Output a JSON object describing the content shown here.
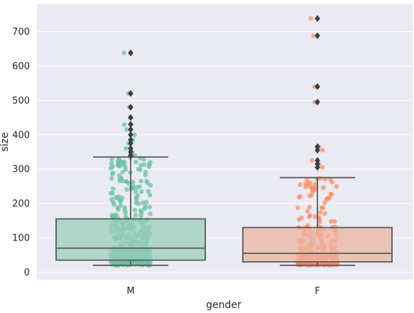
{
  "chart_data": {
    "type": "box",
    "title": "",
    "xlabel": "gender",
    "ylabel": "size",
    "categories": [
      "M",
      "F"
    ],
    "ylim": [
      -25,
      775
    ],
    "yticks": [
      0,
      100,
      200,
      300,
      400,
      500,
      600,
      700
    ],
    "grid": true,
    "background": "#eaeaf2",
    "boxes": [
      {
        "category": "M",
        "q1": 35,
        "median": 70,
        "q3": 155,
        "whisker_low": 20,
        "whisker_high": 335,
        "fliers": [
          340,
          350,
          360,
          375,
          385,
          400,
          415,
          430,
          450,
          480,
          520,
          638
        ],
        "color": "#66c2a5",
        "box_fill": "#9ccdbb",
        "jitter_count": 500
      },
      {
        "category": "F",
        "q1": 30,
        "median": 55,
        "q3": 130,
        "whisker_low": 20,
        "whisker_high": 275,
        "fliers": [
          305,
          315,
          325,
          355,
          365,
          495,
          540,
          688,
          738
        ],
        "color": "#fc8d62",
        "box_fill": "#ebb5a2",
        "jitter_count": 300
      }
    ]
  }
}
